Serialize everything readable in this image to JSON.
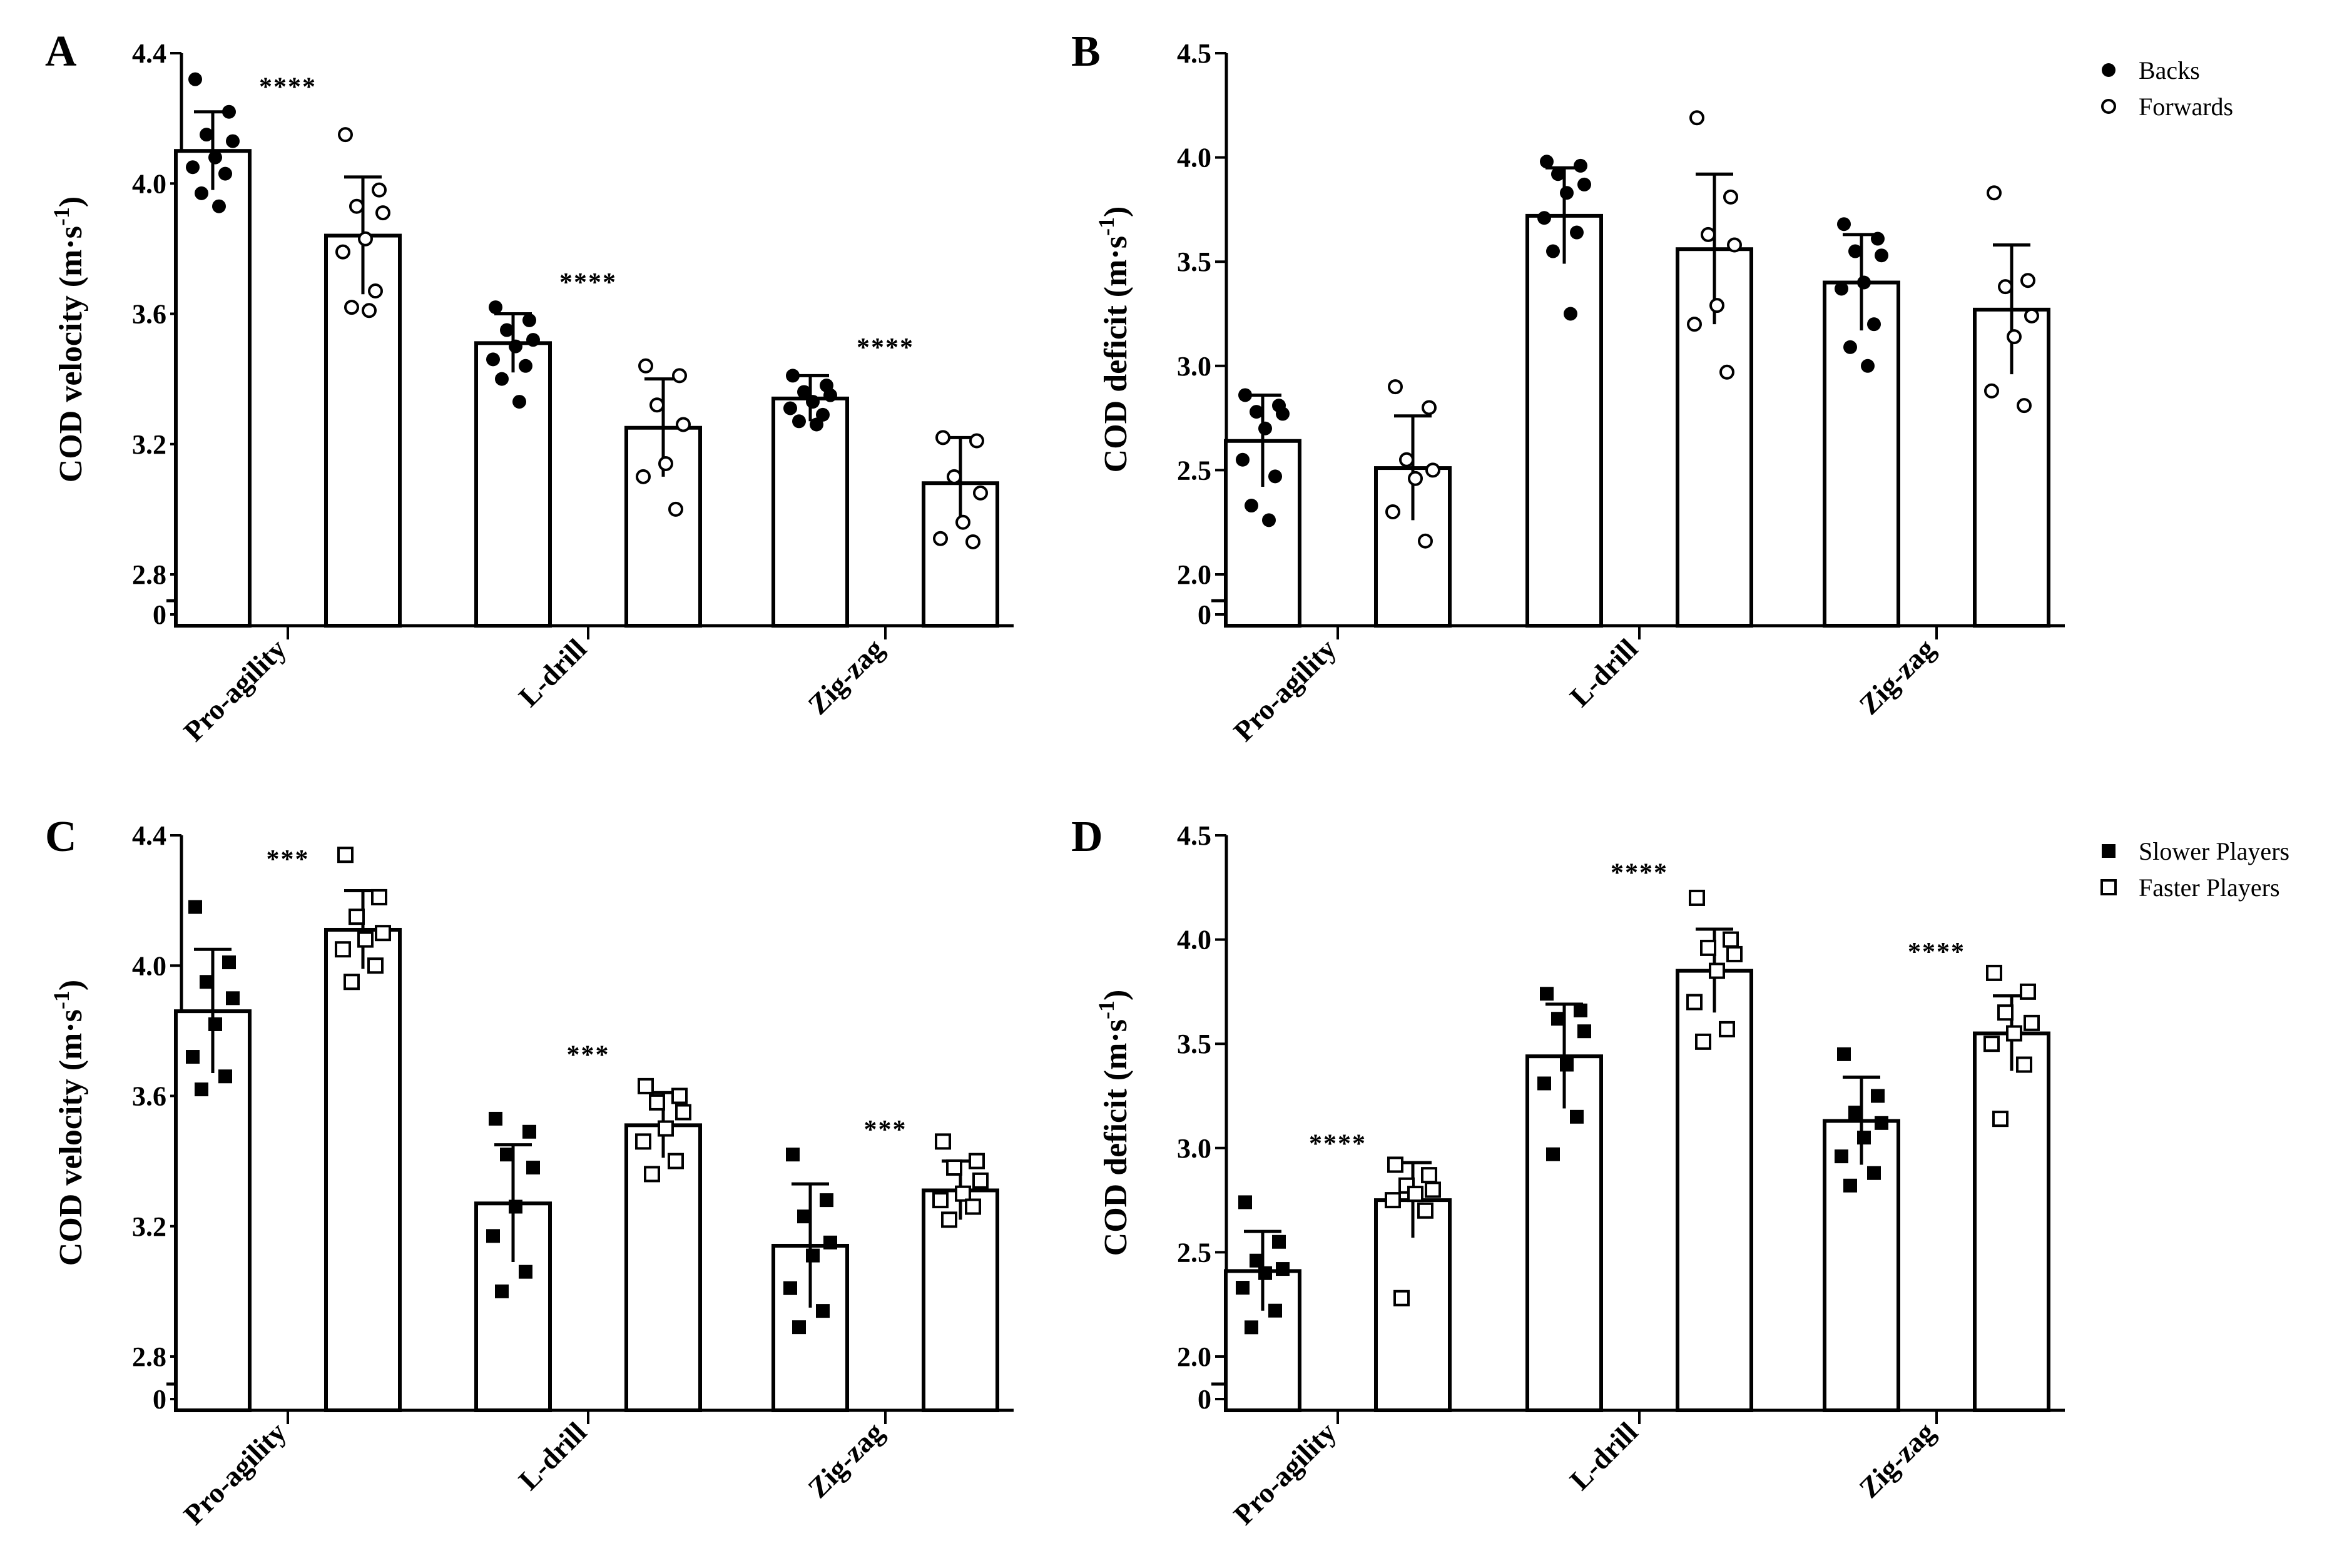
{
  "chart_data": [
    {
      "panel": "A",
      "type": "bar",
      "marker": "circle",
      "ylabel": "COD velocity (m·s",
      "ylabel_sup": "-1",
      "ylabel_close": ")",
      "ylim": [
        2.8,
        4.4
      ],
      "yticks": [
        "2.8",
        "3.2",
        "3.6",
        "4.0",
        "4.4"
      ],
      "zero_label": "0",
      "categories": [
        "Pro-agility",
        "L-drill",
        "Zig-zag"
      ],
      "series": [
        {
          "name": "Backs",
          "filled": true,
          "values": [
            4.1,
            3.51,
            3.34
          ],
          "sd": [
            0.12,
            0.09,
            0.07
          ],
          "points": [
            [
              4.32,
              4.22,
              4.15,
              4.13,
              4.08,
              4.05,
              4.03,
              3.97,
              3.93
            ],
            [
              3.62,
              3.58,
              3.55,
              3.52,
              3.5,
              3.46,
              3.44,
              3.4,
              3.33
            ],
            [
              3.41,
              3.38,
              3.36,
              3.35,
              3.33,
              3.31,
              3.29,
              3.27,
              3.26
            ]
          ]
        },
        {
          "name": "Forwards",
          "filled": false,
          "values": [
            3.84,
            3.25,
            3.08
          ],
          "sd": [
            0.18,
            0.15,
            0.14
          ],
          "points": [
            [
              4.15,
              3.98,
              3.93,
              3.91,
              3.83,
              3.79,
              3.67,
              3.62,
              3.61
            ],
            [
              3.44,
              3.41,
              3.32,
              3.26,
              3.14,
              3.1,
              3.0
            ],
            [
              3.22,
              3.21,
              3.1,
              3.05,
              2.96,
              2.91,
              2.9
            ]
          ]
        }
      ],
      "significance": [
        {
          "category": 0,
          "label": "****",
          "y": 4.27
        },
        {
          "category": 1,
          "label": "****",
          "y": 3.67
        },
        {
          "category": 2,
          "label": "****",
          "y": 3.47
        }
      ],
      "legend": null
    },
    {
      "panel": "B",
      "type": "bar",
      "marker": "circle",
      "ylabel": "COD deficit (m·s",
      "ylabel_sup": "-1",
      "ylabel_close": ")",
      "ylim": [
        2.0,
        4.5
      ],
      "yticks": [
        "2.0",
        "2.5",
        "3.0",
        "3.5",
        "4.0",
        "4.5"
      ],
      "zero_label": "0",
      "categories": [
        "Pro-agility",
        "L-drill",
        "Zig-zag"
      ],
      "series": [
        {
          "name": "Backs",
          "filled": true,
          "values": [
            2.64,
            3.72,
            3.4
          ],
          "sd": [
            0.22,
            0.23,
            0.23
          ],
          "points": [
            [
              2.86,
              2.81,
              2.78,
              2.77,
              2.7,
              2.55,
              2.47,
              2.33,
              2.26
            ],
            [
              3.98,
              3.96,
              3.92,
              3.87,
              3.83,
              3.71,
              3.64,
              3.55,
              3.25
            ],
            [
              3.68,
              3.61,
              3.55,
              3.53,
              3.4,
              3.37,
              3.2,
              3.09,
              3.0
            ]
          ]
        },
        {
          "name": "Forwards",
          "filled": false,
          "values": [
            2.51,
            3.56,
            3.27
          ],
          "sd": [
            0.25,
            0.36,
            0.31
          ],
          "points": [
            [
              2.9,
              2.8,
              2.55,
              2.5,
              2.46,
              2.3,
              2.16
            ],
            [
              4.19,
              3.81,
              3.63,
              3.58,
              3.29,
              3.2,
              2.97
            ],
            [
              3.83,
              3.41,
              3.38,
              3.24,
              3.14,
              2.88,
              2.81
            ]
          ]
        }
      ],
      "significance": [],
      "legend": {
        "position": "top-right",
        "entries": [
          "Backs",
          "Forwards"
        ]
      }
    },
    {
      "panel": "C",
      "type": "bar",
      "marker": "square",
      "ylabel": "COD velocity (m·s",
      "ylabel_sup": "-1",
      "ylabel_close": ")",
      "ylim": [
        2.8,
        4.4
      ],
      "yticks": [
        "2.8",
        "3.2",
        "3.6",
        "4.0",
        "4.4"
      ],
      "zero_label": "0",
      "categories": [
        "Pro-agility",
        "L-drill",
        "Zig-zag"
      ],
      "series": [
        {
          "name": "Slower Players",
          "filled": true,
          "values": [
            3.86,
            3.27,
            3.14
          ],
          "sd": [
            0.19,
            0.18,
            0.19
          ],
          "points": [
            [
              4.18,
              4.01,
              3.95,
              3.9,
              3.82,
              3.72,
              3.66,
              3.62
            ],
            [
              3.53,
              3.49,
              3.42,
              3.38,
              3.26,
              3.17,
              3.06,
              3.0
            ],
            [
              3.42,
              3.28,
              3.23,
              3.15,
              3.11,
              3.01,
              2.94,
              2.89
            ]
          ]
        },
        {
          "name": "Faster Players",
          "filled": false,
          "values": [
            4.11,
            3.51,
            3.31
          ],
          "sd": [
            0.12,
            0.1,
            0.09
          ],
          "points": [
            [
              4.34,
              4.21,
              4.15,
              4.1,
              4.08,
              4.05,
              4.0,
              3.95
            ],
            [
              3.63,
              3.6,
              3.58,
              3.55,
              3.5,
              3.46,
              3.4,
              3.36
            ],
            [
              3.46,
              3.4,
              3.38,
              3.34,
              3.3,
              3.28,
              3.26,
              3.22
            ]
          ]
        }
      ],
      "significance": [
        {
          "category": 0,
          "label": "***",
          "y": 4.3
        },
        {
          "category": 1,
          "label": "***",
          "y": 3.7
        },
        {
          "category": 2,
          "label": "***",
          "y": 3.47
        }
      ],
      "legend": null
    },
    {
      "panel": "D",
      "type": "bar",
      "marker": "square",
      "ylabel": "COD deficit (m·s",
      "ylabel_sup": "-1",
      "ylabel_close": ")",
      "ylim": [
        2.0,
        4.5
      ],
      "yticks": [
        "2.0",
        "2.5",
        "3.0",
        "3.5",
        "4.0",
        "4.5"
      ],
      "zero_label": "0",
      "categories": [
        "Pro-agility",
        "L-drill",
        "Zig-zag"
      ],
      "series": [
        {
          "name": "Slower Players",
          "filled": true,
          "values": [
            2.41,
            3.44,
            3.13
          ],
          "sd": [
            0.19,
            0.25,
            0.21
          ],
          "points": [
            [
              2.74,
              2.55,
              2.46,
              2.42,
              2.4,
              2.33,
              2.22,
              2.14
            ],
            [
              3.74,
              3.66,
              3.62,
              3.56,
              3.4,
              3.31,
              3.15,
              2.97
            ],
            [
              3.45,
              3.25,
              3.17,
              3.12,
              3.05,
              2.96,
              2.88,
              2.82
            ]
          ]
        },
        {
          "name": "Faster Players",
          "filled": false,
          "values": [
            2.75,
            3.85,
            3.55
          ],
          "sd": [
            0.18,
            0.2,
            0.18
          ],
          "points": [
            [
              2.92,
              2.87,
              2.82,
              2.8,
              2.78,
              2.75,
              2.7,
              2.28
            ],
            [
              4.2,
              4.0,
              3.96,
              3.93,
              3.85,
              3.7,
              3.57,
              3.51
            ],
            [
              3.84,
              3.75,
              3.65,
              3.6,
              3.55,
              3.5,
              3.4,
              3.14
            ]
          ]
        }
      ],
      "significance": [
        {
          "category": 0,
          "label": "****",
          "y": 2.98
        },
        {
          "category": 1,
          "label": "****",
          "y": 4.28
        },
        {
          "category": 2,
          "label": "****",
          "y": 3.9
        }
      ],
      "legend": {
        "position": "top-right",
        "entries": [
          "Slower Players",
          "Faster Players"
        ]
      }
    }
  ]
}
